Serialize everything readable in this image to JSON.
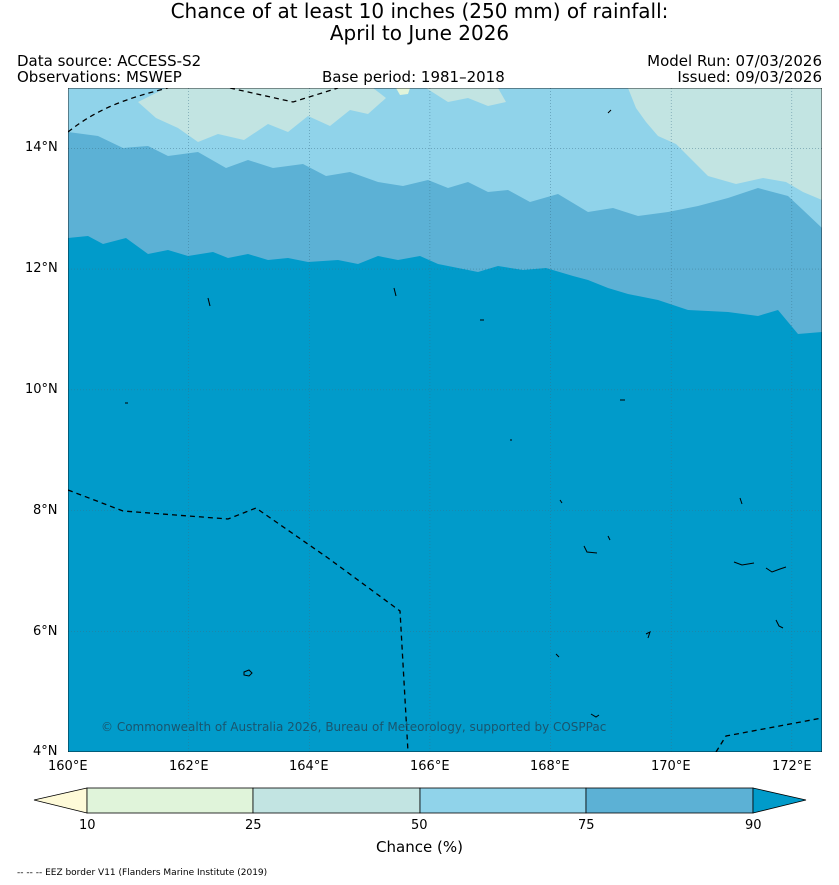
{
  "title": {
    "line1": "Chance of at least 10 inches (250  mm) of rainfall:",
    "line2": "April to June 2026"
  },
  "meta": {
    "data_source": "Data source: ACCESS-S2",
    "observations": "Observations: MSWEP",
    "base_period": "Base period: 1981–2018",
    "model_run": "Model Run: 07/03/2026",
    "issued": "Issued: 09/03/2026"
  },
  "map": {
    "lon_range": [
      160,
      172.5
    ],
    "lat_range": [
      4,
      15
    ],
    "x_ticks": [
      "160°E",
      "162°E",
      "164°E",
      "166°E",
      "168°E",
      "170°E",
      "172°E"
    ],
    "y_ticks": [
      "14°N",
      "12°N",
      "10°N",
      "8°N",
      "6°N",
      "4°N"
    ],
    "copyright": "© Commonwealth of Australia 2026, Bureau of Meteorology, supported by COSPPac"
  },
  "colorbar": {
    "label": "Chance (%)",
    "ticks": [
      "10",
      "25",
      "50",
      "75",
      "90"
    ],
    "colors": {
      "below_10": "#fefad8",
      "c10_25": "#e0f4da",
      "c25_50": "#c2e4e2",
      "c50_75": "#90d3ea",
      "c75_90": "#5cb1d5",
      "above_90": "#019bca"
    }
  },
  "footnote": "-- -- -- EEZ border V11 (Flanders Marine Institute (2019)"
}
